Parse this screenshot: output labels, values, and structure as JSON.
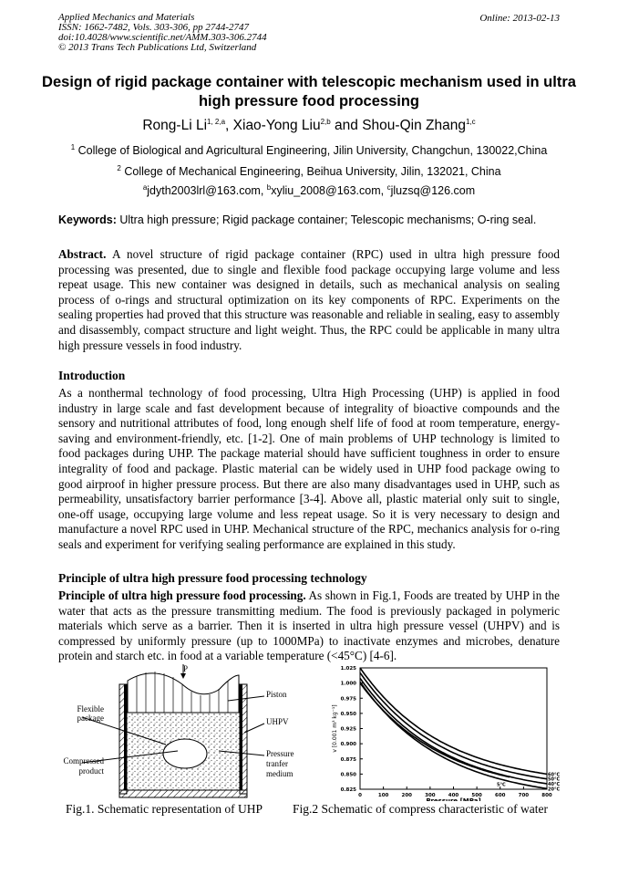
{
  "header": {
    "lines": [
      "Applied Mechanics and Materials",
      "ISSN: 1662-7482, Vols. 303-306, pp 2744-2747",
      "doi:10.4028/www.scientific.net/AMM.303-306.2744",
      "© 2013 Trans Tech Publications Ltd, Switzerland"
    ],
    "online": "Online: 2013-02-13"
  },
  "title": "Design of rigid package container with telescopic mechanism used in ultra high pressure food processing",
  "authors": [
    {
      "name": "Rong-Li Li",
      "sup": "1, 2,a"
    },
    {
      "name": "Xiao-Yong Liu",
      "sup": "2,b"
    },
    {
      "name": "Shou-Qin Zhang",
      "sup": "1,c"
    }
  ],
  "affiliations": [
    {
      "sup": "1",
      "text": "College of Biological and Agricultural Engineering, Jilin University, Changchun, 130022,China"
    },
    {
      "sup": "2",
      "text": "College of Mechanical Engineering, Beihua University, Jilin, 132021, China"
    }
  ],
  "emails": [
    {
      "sup": "a",
      "text": "jdyth2003lrl@163.com, "
    },
    {
      "sup": "b",
      "text": "xyliu_2008@163.com, "
    },
    {
      "sup": "c",
      "text": "jluzsq@126.com"
    }
  ],
  "keywords": {
    "label": "Keywords:",
    "text": " Ultra high pressure; Rigid package container; Telescopic mechanisms; O-ring seal."
  },
  "abstract": {
    "label": "Abstract.",
    "text": " A novel structure of rigid package container (RPC) used in ultra high pressure food processing was presented, due to single and flexible food package occupying large volume and less repeat usage. This new container was designed in details, such as mechanical analysis on sealing process of o-rings and structural optimization on its key components of RPC. Experiments on the sealing properties had proved that this structure was reasonable and reliable in sealing, easy to assembly and disassembly, compact structure and light weight. Thus, the RPC could be applicable in many ultra high pressure vessels in food industry."
  },
  "intro": {
    "heading": "Introduction",
    "text": "As a nonthermal technology of food processing, Ultra High Processing (UHP) is applied in food industry in large scale and fast development because of integrality of bioactive compounds and the sensory and nutritional attributes of food, long enough shelf life of food at room temperature, energy-saving and environment-friendly, etc. [1-2]. One of main problems of UHP technology is limited to food packages during UHP. The package material should have sufficient toughness in order to ensure integrality of food and package. Plastic material can be widely used in UHP food package owing to good airproof in higher pressure process. But there are also many disadvantages used in UHP, such as permeability, unsatisfactory barrier performance [3-4]. Above all, plastic material only suit to single, one-off usage, occupying large volume and less repeat usage. So it is very necessary to design and manufacture a novel RPC used in UHP. Mechanical structure of the RPC, mechanics analysis for o-ring seals and experiment for verifying sealing performance are explained in this study."
  },
  "principle": {
    "heading": "Principle of ultra high pressure food processing technology",
    "label": "Principle of ultra high pressure food processing.",
    "text": " As shown in Fig.1, Foods are treated by UHP in the water that acts as the pressure transmitting medium. The food is previously packaged in polymeric materials which serve as a barrier. Then it is inserted in ultra high pressure vessel (UHPV) and is compressed by uniformly pressure (up to 1000MPa) to inactivate enzymes and microbes, denature protein and starch etc. in food at a variable temperature (<45°C) [4-6]."
  },
  "fig1": {
    "caption": "Fig.1. Schematic representation of UHP",
    "labels": {
      "p": "P",
      "piston": "Piston",
      "flexible": "Flexible",
      "package": "package",
      "uhpv": "UHPV",
      "compressed": "Compressed",
      "product": "product",
      "pressure": "Pressure",
      "tranfer": "tranfer",
      "medium": "medium"
    }
  },
  "fig2": {
    "caption": "Fig.2 Schematic of compress characteristic of water"
  },
  "chart_data": {
    "type": "line",
    "xlabel": "Pressure [MPa]",
    "ylabel": "v [0.001 m³ kg⁻¹]",
    "xlim": [
      0,
      800
    ],
    "ylim": [
      0.825,
      1.025
    ],
    "xticks": [
      "0",
      "100",
      "200",
      "300",
      "400",
      "500",
      "600",
      "700",
      "800"
    ],
    "yticks": [
      "0.825",
      "0.850",
      "0.875",
      "0.900",
      "0.925",
      "0.950",
      "0.975",
      "1.000",
      "1.025"
    ],
    "series": [
      {
        "name": "60°C",
        "start": 1.025,
        "end": 0.85
      },
      {
        "name": "50°C",
        "start": 1.017,
        "end": 0.842
      },
      {
        "name": "40°C",
        "start": 1.008,
        "end": 0.834
      },
      {
        "name": "20°C",
        "start": 1.002,
        "end": 0.826
      },
      {
        "name": "5°C",
        "start": 1.0,
        "end": 0.845,
        "xend": 640
      }
    ]
  }
}
